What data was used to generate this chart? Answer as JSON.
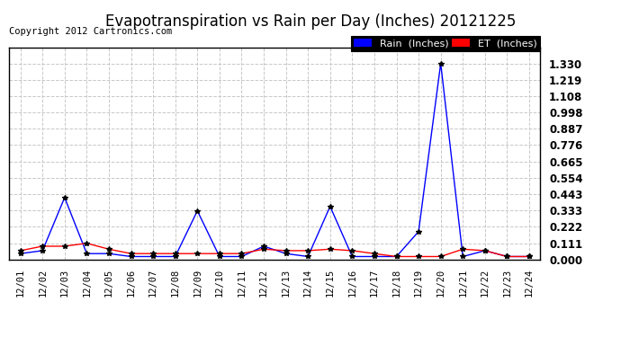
{
  "title": "Evapotranspiration vs Rain per Day (Inches) 20121225",
  "copyright": "Copyright 2012 Cartronics.com",
  "x_labels": [
    "12/01",
    "12/02",
    "12/03",
    "12/04",
    "12/05",
    "12/06",
    "12/07",
    "12/08",
    "12/09",
    "12/10",
    "12/11",
    "12/12",
    "12/13",
    "12/14",
    "12/15",
    "12/16",
    "12/17",
    "12/18",
    "12/19",
    "12/20",
    "12/21",
    "12/22",
    "12/23",
    "12/24"
  ],
  "rain_inches": [
    0.04,
    0.06,
    0.42,
    0.04,
    0.04,
    0.02,
    0.02,
    0.02,
    0.33,
    0.02,
    0.02,
    0.09,
    0.04,
    0.02,
    0.36,
    0.02,
    0.02,
    0.02,
    0.19,
    1.33,
    0.02,
    0.06,
    0.02,
    0.02
  ],
  "et_inches": [
    0.06,
    0.09,
    0.09,
    0.11,
    0.07,
    0.04,
    0.04,
    0.04,
    0.04,
    0.04,
    0.04,
    0.07,
    0.06,
    0.06,
    0.07,
    0.06,
    0.04,
    0.02,
    0.02,
    0.02,
    0.07,
    0.06,
    0.02,
    0.02
  ],
  "rain_color": "#0000ff",
  "et_color": "#ff0000",
  "background_color": "#ffffff",
  "grid_color": "#c8c8c8",
  "ylim": [
    0.0,
    1.44
  ],
  "yticks": [
    0.0,
    0.111,
    0.222,
    0.333,
    0.443,
    0.554,
    0.665,
    0.776,
    0.887,
    0.998,
    1.108,
    1.219,
    1.33
  ],
  "legend_rain_label": "Rain  (Inches)",
  "legend_et_label": "ET  (Inches)",
  "title_fontsize": 12,
  "copyright_fontsize": 7.5,
  "tick_fontsize": 7.5,
  "ytick_fontsize": 8.5
}
